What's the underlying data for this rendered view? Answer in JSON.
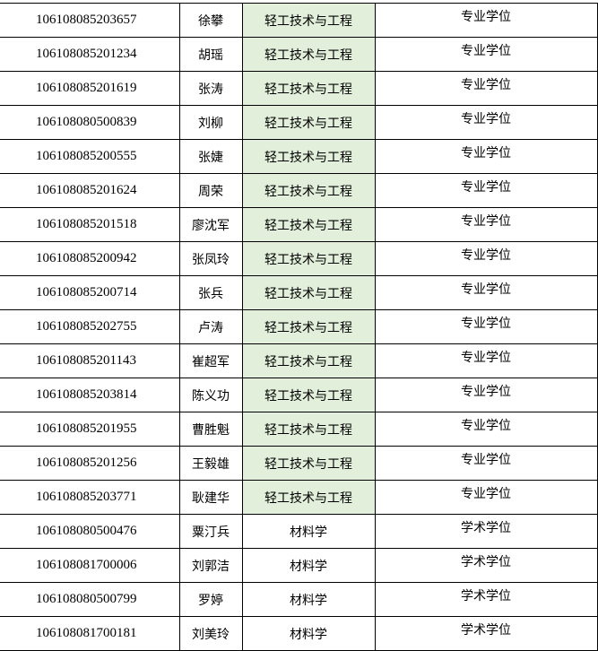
{
  "table": {
    "rows": [
      [
        "106108085203657",
        "徐攀",
        "轻工技术与工程",
        "专业学位"
      ],
      [
        "106108085201234",
        "胡瑶",
        "轻工技术与工程",
        "专业学位"
      ],
      [
        "106108085201619",
        "张涛",
        "轻工技术与工程",
        "专业学位"
      ],
      [
        "106108080500839",
        "刘柳",
        "轻工技术与工程",
        "专业学位"
      ],
      [
        "106108085200555",
        "张婕",
        "轻工技术与工程",
        "专业学位"
      ],
      [
        "106108085201624",
        "周荣",
        "轻工技术与工程",
        "专业学位"
      ],
      [
        "106108085201518",
        "廖沈军",
        "轻工技术与工程",
        "专业学位"
      ],
      [
        "106108085200942",
        "张凤玲",
        "轻工技术与工程",
        "专业学位"
      ],
      [
        "106108085200714",
        "张兵",
        "轻工技术与工程",
        "专业学位"
      ],
      [
        "106108085202755",
        "卢涛",
        "轻工技术与工程",
        "专业学位"
      ],
      [
        "106108085201143",
        "崔超军",
        "轻工技术与工程",
        "专业学位"
      ],
      [
        "106108085203814",
        "陈义功",
        "轻工技术与工程",
        "专业学位"
      ],
      [
        "106108085201955",
        "曹胜魁",
        "轻工技术与工程",
        "专业学位"
      ],
      [
        "106108085201256",
        "王毅雄",
        "轻工技术与工程",
        "专业学位"
      ],
      [
        "106108085203771",
        "耿建华",
        "轻工技术与工程",
        "专业学位"
      ],
      [
        "106108080500476",
        "粟汀兵",
        "材料学",
        "学术学位"
      ],
      [
        "106108081700006",
        "刘郭洁",
        "材料学",
        "学术学位"
      ],
      [
        "106108080500799",
        "罗婷",
        "材料学",
        "学术学位"
      ],
      [
        "106108081700181",
        "刘美玲",
        "材料学",
        "学术学位"
      ]
    ]
  }
}
